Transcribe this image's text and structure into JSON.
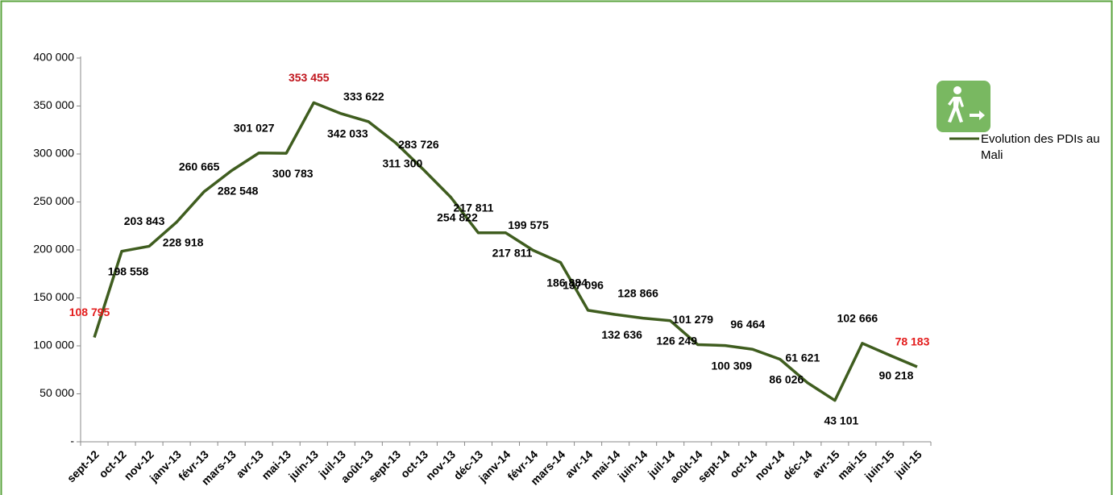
{
  "chart_data": {
    "type": "line",
    "categories": [
      "sept-12",
      "oct-12",
      "nov-12",
      "janv-13",
      "févr-13",
      "mars-13",
      "avr-13",
      "mai-13",
      "juin-13",
      "juil-13",
      "août-13",
      "sept-13",
      "oct-13",
      "nov-13",
      "déc-13",
      "janv-14",
      "févr-14",
      "mars-14",
      "avr-14",
      "mai-14",
      "juin-14",
      "juil-14",
      "août-14",
      "sept-14",
      "oct-14",
      "nov-14",
      "déc-14",
      "avr-15",
      "mai-15",
      "juin-15",
      "juil-15"
    ],
    "series": [
      {
        "name": "Evolution des PDIs au Mali",
        "color": "#3f5d1f",
        "values": [
          108795,
          198558,
          203843,
          228918,
          260665,
          282548,
          301027,
          300783,
          353455,
          342033,
          333622,
          311300,
          283726,
          254822,
          217811,
          217811,
          199575,
          186884,
          137096,
          132636,
          128866,
          126249,
          101279,
          100309,
          96464,
          86026,
          61621,
          43101,
          102666,
          90218,
          78183
        ],
        "value_labels": [
          "108 795",
          "198 558",
          "203 843",
          "228 918",
          "260 665",
          "282 548",
          "301 027",
          "300 783",
          "353 455",
          "342 033",
          "333 622",
          "311 300",
          "283 726",
          "254 822",
          "217 811",
          "217 811",
          "199 575",
          "186 884",
          "137 096",
          "132 636",
          "128 866",
          "126 249",
          "101 279",
          "100 309",
          "96 464",
          "86 026",
          "61 621",
          "43 101",
          "102 666",
          "90 218",
          "78 183"
        ],
        "value_label_colors": [
          "#e31b1b",
          "#000",
          "#000",
          "#000",
          "#000",
          "#000",
          "#000",
          "#000",
          "#c0141c",
          "#000",
          "#000",
          "#000",
          "#000",
          "#000",
          "#000",
          "#000",
          "#000",
          "#000",
          "#000",
          "#000",
          "#000",
          "#000",
          "#000",
          "#000",
          "#000",
          "#000",
          "#000",
          "#000",
          "#000",
          "#000",
          "#e31b1b"
        ]
      }
    ],
    "ylim": [
      0,
      400000
    ],
    "yticks": [
      {
        "value": 0,
        "label": "-"
      },
      {
        "value": 50000,
        "label": "50 000"
      },
      {
        "value": 100000,
        "label": "100 000"
      },
      {
        "value": 150000,
        "label": "150 000"
      },
      {
        "value": 200000,
        "label": "200 000"
      },
      {
        "value": 250000,
        "label": "250 000"
      },
      {
        "value": 300000,
        "label": "300 000"
      },
      {
        "value": 350000,
        "label": "350 000"
      },
      {
        "value": 400000,
        "label": "400 000"
      }
    ],
    "grid": false
  }
}
